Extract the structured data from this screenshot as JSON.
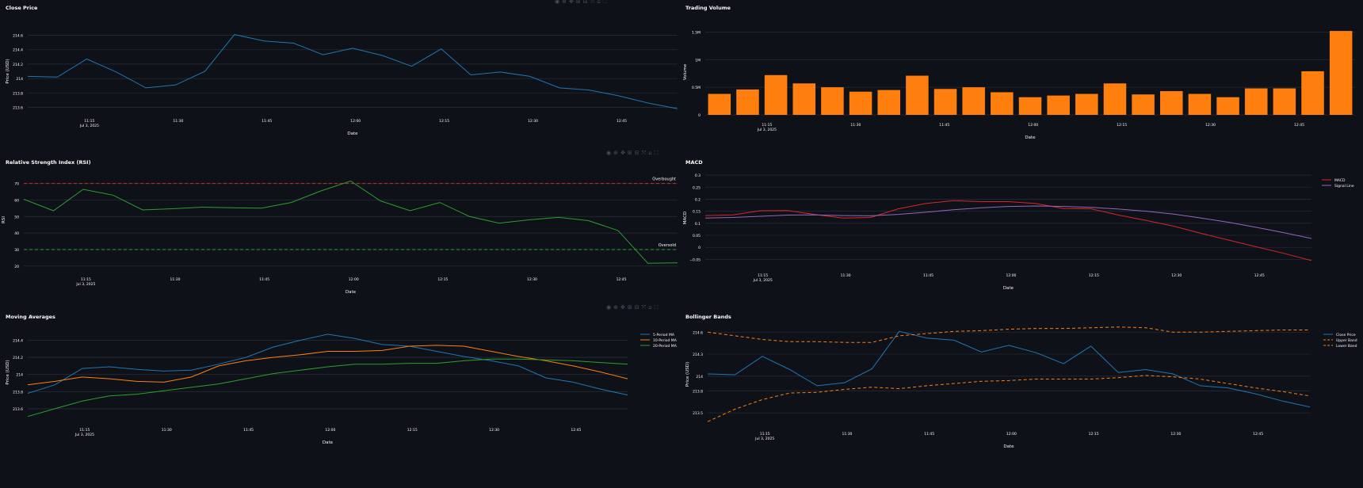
{
  "toolbar_icons": [
    "camera-icon",
    "zoom-icon",
    "pan-icon",
    "zoom-in-icon",
    "zoom-out-icon",
    "autoscale-icon",
    "reset-axes-icon",
    "fullscreen-icon"
  ],
  "colors": {
    "bg": "#0e1117",
    "grid": "#262b36",
    "text": "#fafafa",
    "blue": "#1f77b4",
    "orange": "#ff7f0e",
    "green": "#2ca02c",
    "red": "#d62728",
    "purple": "#9467bd"
  },
  "chart_data": [
    {
      "id": "close",
      "type": "line",
      "title": "Close Price",
      "xlabel": "Date",
      "ylabel": "Price (USD)",
      "x_ticks": [
        "11:15",
        "11:30",
        "11:45",
        "12:00",
        "12:15",
        "12:30",
        "12:45"
      ],
      "x_date_label": "Jul 3, 2025",
      "xlim": [
        0,
        22
      ],
      "ylim": [
        213.55,
        214.65
      ],
      "y_ticks": [
        {
          "v": 213.6,
          "l": "213.6"
        },
        {
          "v": 213.8,
          "l": "213.8"
        },
        {
          "v": 214,
          "l": "214"
        },
        {
          "v": 214.2,
          "l": "214.2"
        },
        {
          "v": 214.4,
          "l": "214.4"
        },
        {
          "v": 214.6,
          "l": "214.6"
        }
      ],
      "grid": true,
      "series": [
        {
          "color": "#1f77b4",
          "values": [
            214.03,
            214.02,
            214.27,
            214.09,
            213.87,
            213.91,
            214.1,
            214.61,
            214.52,
            214.49,
            214.33,
            214.42,
            214.32,
            214.17,
            214.41,
            214.05,
            214.09,
            214.03,
            213.87,
            213.84,
            213.76,
            213.66,
            213.58
          ]
        }
      ]
    },
    {
      "id": "volume",
      "type": "bar",
      "title": "Trading Volume",
      "xlabel": "Date",
      "ylabel": "Volume",
      "x_ticks": [
        "11:15",
        "11:30",
        "11:45",
        "12:00",
        "12:15",
        "12:30",
        "12:45"
      ],
      "x_date_label": "Jul 3, 2025",
      "xlim": [
        -0.5,
        22.5
      ],
      "ylim": [
        0,
        1.55
      ],
      "y_ticks": [
        {
          "v": 0,
          "l": "0"
        },
        {
          "v": 0.5,
          "l": "0.5M"
        },
        {
          "v": 1,
          "l": "1M"
        },
        {
          "v": 1.5,
          "l": "1.5M"
        }
      ],
      "grid": true,
      "series": [
        {
          "color": "#ff7f0e",
          "values": [
            0.38,
            0.46,
            0.72,
            0.57,
            0.5,
            0.42,
            0.45,
            0.71,
            0.47,
            0.5,
            0.41,
            0.32,
            0.35,
            0.38,
            0.57,
            0.37,
            0.43,
            0.38,
            0.32,
            0.48,
            0.48,
            0.79,
            1.52
          ]
        }
      ]
    },
    {
      "id": "rsi",
      "type": "line",
      "title": "Relative Strength Index (RSI)",
      "xlabel": "Date",
      "ylabel": "RSI",
      "x_ticks": [
        "11:15",
        "11:30",
        "11:45",
        "12:00",
        "12:15",
        "12:30",
        "12:45"
      ],
      "x_date_label": "Jul 3, 2025",
      "xlim": [
        0,
        22
      ],
      "ylim": [
        18,
        78
      ],
      "y_ticks": [
        {
          "v": 20,
          "l": "20"
        },
        {
          "v": 30,
          "l": "30"
        },
        {
          "v": 40,
          "l": "40"
        },
        {
          "v": 50,
          "l": "50"
        },
        {
          "v": 60,
          "l": "60"
        },
        {
          "v": 70,
          "l": "70"
        }
      ],
      "grid": true,
      "hlines": [
        {
          "v": 70,
          "color": "#d62728",
          "label": "Overbought"
        },
        {
          "v": 30,
          "color": "#2ca02c",
          "label": "Oversold"
        }
      ],
      "series": [
        {
          "color": "#2ca02c",
          "values": [
            60.5,
            53.5,
            66.5,
            63,
            54,
            54.7,
            55.7,
            55.3,
            55.1,
            58.5,
            65.5,
            71.5,
            59.5,
            53.5,
            58.5,
            50,
            46,
            48,
            49.5,
            47.5,
            41.5,
            21.7,
            22
          ]
        }
      ]
    },
    {
      "id": "macd",
      "type": "line",
      "title": "MACD",
      "xlabel": "Date",
      "ylabel": "MACD",
      "x_ticks": [
        "11:15",
        "11:30",
        "11:45",
        "12:00",
        "12:15",
        "12:30",
        "12:45"
      ],
      "x_date_label": "Jul 3, 2025",
      "xlim": [
        0,
        22
      ],
      "ylim": [
        -0.075,
        0.32
      ],
      "y_ticks": [
        {
          "v": -0.05,
          "l": "−0.05"
        },
        {
          "v": 0,
          "l": "0"
        },
        {
          "v": 0.05,
          "l": "0.05"
        },
        {
          "v": 0.1,
          "l": "0.1"
        },
        {
          "v": 0.15,
          "l": "0.15"
        },
        {
          "v": 0.2,
          "l": "0.2"
        },
        {
          "v": 0.25,
          "l": "0.25"
        },
        {
          "v": 0.3,
          "l": "0.3"
        }
      ],
      "grid": true,
      "legend": "top-right",
      "series": [
        {
          "name": "MACD",
          "color": "#d62728",
          "values": [
            0.132,
            0.135,
            0.152,
            0.153,
            0.136,
            0.122,
            0.124,
            0.16,
            0.182,
            0.194,
            0.19,
            0.19,
            0.182,
            0.161,
            0.16,
            0.134,
            0.112,
            0.088,
            0.058,
            0.03,
            0.002,
            -0.025,
            -0.055
          ]
        },
        {
          "name": "Signal Line",
          "color": "#9467bd",
          "values": [
            0.122,
            0.124,
            0.129,
            0.134,
            0.135,
            0.132,
            0.131,
            0.137,
            0.146,
            0.156,
            0.164,
            0.17,
            0.172,
            0.17,
            0.166,
            0.159,
            0.15,
            0.138,
            0.122,
            0.104,
            0.083,
            0.061,
            0.037
          ]
        }
      ]
    },
    {
      "id": "ma",
      "type": "line",
      "title": "Moving Averages",
      "xlabel": "Date",
      "ylabel": "Price (USD)",
      "x_ticks": [
        "11:15",
        "11:30",
        "11:45",
        "12:00",
        "12:15",
        "12:30",
        "12:45"
      ],
      "x_date_label": "Jul 3, 2025",
      "xlim": [
        0,
        22
      ],
      "ylim": [
        213.47,
        214.58
      ],
      "y_ticks": [
        {
          "v": 213.6,
          "l": "213.6"
        },
        {
          "v": 213.8,
          "l": "213.8"
        },
        {
          "v": 214,
          "l": "214"
        },
        {
          "v": 214.2,
          "l": "214.2"
        },
        {
          "v": 214.4,
          "l": "214.4"
        }
      ],
      "grid": true,
      "legend": "top-right",
      "series": [
        {
          "name": "5-Period MA",
          "color": "#1f77b4",
          "values": [
            213.78,
            213.88,
            214.07,
            214.09,
            214.06,
            214.04,
            214.05,
            214.12,
            214.2,
            214.32,
            214.4,
            214.47,
            214.42,
            214.35,
            214.33,
            214.27,
            214.21,
            214.16,
            214.1,
            213.96,
            213.91,
            213.83,
            213.76
          ]
        },
        {
          "name": "10-Period MA",
          "color": "#ff7f0e",
          "values": [
            213.88,
            213.92,
            213.97,
            213.95,
            213.92,
            213.91,
            213.97,
            214.1,
            214.16,
            214.2,
            214.23,
            214.27,
            214.27,
            214.28,
            214.33,
            214.34,
            214.33,
            214.27,
            214.21,
            214.16,
            214.1,
            214.03,
            213.95
          ]
        },
        {
          "name": "20-Period MA",
          "color": "#2ca02c",
          "values": [
            213.51,
            213.6,
            213.69,
            213.75,
            213.77,
            213.81,
            213.85,
            213.89,
            213.95,
            214.01,
            214.05,
            214.09,
            214.12,
            214.12,
            214.13,
            214.13,
            214.16,
            214.18,
            214.18,
            214.17,
            214.16,
            214.14,
            214.12
          ]
        }
      ]
    },
    {
      "id": "bb",
      "type": "line",
      "title": "Bollinger Bands",
      "xlabel": "Date",
      "ylabel": "Price (USD)",
      "x_ticks": [
        "11:15",
        "11:30",
        "11:45",
        "12:00",
        "12:15",
        "12:30",
        "12:45"
      ],
      "x_date_label": "Jul 3, 2025",
      "xlim": [
        0,
        22
      ],
      "ylim": [
        213.35,
        214.7
      ],
      "y_ticks": [
        {
          "v": 213.5,
          "l": "213.5"
        },
        {
          "v": 213.8,
          "l": "213.8"
        },
        {
          "v": 214,
          "l": "214"
        },
        {
          "v": 214.3,
          "l": "214.3"
        },
        {
          "v": 214.6,
          "l": "214.6"
        }
      ],
      "grid": true,
      "legend": "top-right",
      "series": [
        {
          "name": "Close Price",
          "color": "#1f77b4",
          "dash": false,
          "values": [
            214.03,
            214.02,
            214.27,
            214.09,
            213.87,
            213.91,
            214.1,
            214.61,
            214.52,
            214.49,
            214.33,
            214.42,
            214.32,
            214.17,
            214.41,
            214.05,
            214.09,
            214.03,
            213.87,
            213.84,
            213.76,
            213.66,
            213.58
          ]
        },
        {
          "name": "Upper Band",
          "color": "#ff7f0e",
          "dash": true,
          "values": [
            214.6,
            214.55,
            214.5,
            214.47,
            214.47,
            214.46,
            214.46,
            214.55,
            214.58,
            214.61,
            214.62,
            214.64,
            214.65,
            214.65,
            214.66,
            214.67,
            214.66,
            214.6,
            214.6,
            214.61,
            214.62,
            214.63,
            214.63
          ]
        },
        {
          "name": "Lower Band",
          "color": "#ff7f0e",
          "dash": true,
          "values": [
            213.38,
            213.55,
            213.68,
            213.77,
            213.78,
            213.82,
            213.85,
            213.83,
            213.87,
            213.9,
            213.93,
            213.94,
            213.96,
            213.96,
            213.96,
            213.98,
            214.01,
            213.99,
            213.96,
            213.9,
            213.84,
            213.79,
            213.73
          ]
        }
      ]
    }
  ]
}
